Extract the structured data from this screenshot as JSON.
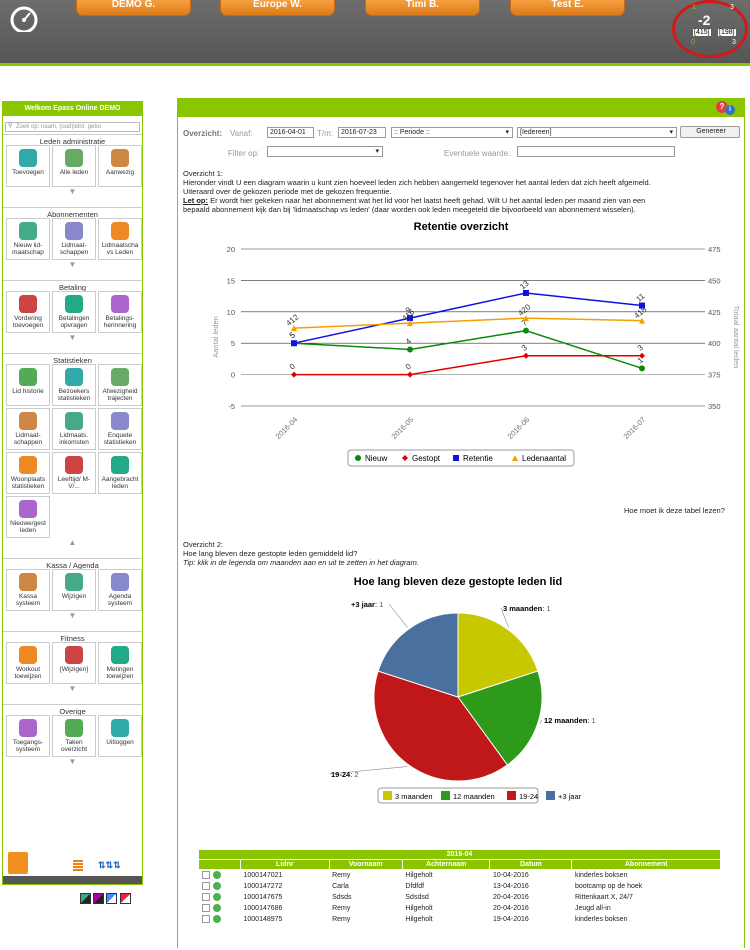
{
  "tabs": [
    "DEMO G.",
    "Europe W.",
    "Timi B.",
    "Test E."
  ],
  "score": {
    "value": "-2",
    "top_left": "1",
    "top_right": "3",
    "left_box": "[415]",
    "right_box": "[198]",
    "bottom_left": "0",
    "bottom_right": "3"
  },
  "sidebar": {
    "header": "Welkom Epass Online DEMO",
    "search_placeholder": "Zoek op: naam, (oud)lidnr, gebo",
    "sections": [
      {
        "title": "Leden administratie",
        "items": [
          "Toevoegen",
          "Alle leden",
          "Aanwezig"
        ]
      },
      {
        "title": "Abonnementen",
        "items": [
          "Nieuw lid-maatschap",
          "Lidmaat-schappen",
          "Lidmaatscha vs Leden"
        ]
      },
      {
        "title": "Betaling",
        "items": [
          "Vordering toevoegen",
          "Betalingen opvragen",
          "Betalings-herinnering"
        ]
      },
      {
        "title": "Statistieken",
        "items": [
          "Lid historie",
          "Bezoekers statistieken",
          "Afwezigheid trajecten",
          "Lidmaat-schappen",
          "Lidmaats. inkomsten",
          "Enquete statistieken",
          "Woonplaats statistieken",
          "Leeftijd/ M-V/...",
          "Aangebracht leden",
          "Nieuwe/gest leden"
        ]
      },
      {
        "title": "Kassa / Agenda",
        "items": [
          "Kassa systeem",
          "Wijzigen",
          "Agenda systeem"
        ]
      },
      {
        "title": "Fitness",
        "items": [
          "Workout toewijzen",
          "[Wijzigen]",
          "Metingen toewijzen"
        ]
      },
      {
        "title": "Overige",
        "items": [
          "Toegangs-systeem",
          "Taken overzicht",
          "Uitloggen"
        ]
      }
    ]
  },
  "filters": {
    "overzicht_label": "Overzicht:",
    "vanaf_label": "Vanaf:",
    "vanaf_value": "2016-04-01",
    "tm_label": "T/m:",
    "tm_value": "2016-07-23",
    "periode_value": ":: Periode ::",
    "iedereen_value": "[Iedereen]",
    "generate_label": "Genereer",
    "filter_label": "Filter op:",
    "eventuele_label": "Eventuele waarde:"
  },
  "overzicht1": {
    "heading": "Overzicht 1:",
    "line1": "Hieronder vindt U een diagram waarin u kunt zien hoeveel leden zich hebben aangemeld tegenover het aantal leden dat zich heeft afgemeld.",
    "line2": "Uiteraard over de gekozen periode met de gekozen frequentie.",
    "letop": "Let op:",
    "line3": " Er wordt hier gekeken naar het abonnement wat het lid voor het laatst heeft gehad. Wilt U het aantal leden per maand zien van een",
    "line4": "bepaald abonnement kijk dan bij 'lidmaatschap vs leden' (daar worden ook leden meegeteld die bijvoorbeeld van abonnement wisselen).",
    "help_link": "Hoe moet ik deze tabel lezen?"
  },
  "overzicht2": {
    "heading": "Overzicht 2:",
    "line1": "Hoe lang bleven deze gestopte leden gemiddeld lid?",
    "tip": "Tip: klik in de legenda om maanden aan en uit te zetten in het diagram."
  },
  "chart_data": [
    {
      "type": "line",
      "title": "Retentie overzicht",
      "categories": [
        "2016-04",
        "2016-05",
        "2016-06",
        "2016-07"
      ],
      "ylabel": "Aantal leden",
      "y2label": "Totaal aantal leden",
      "ylim": [
        -5,
        20
      ],
      "y2lim": [
        350,
        475
      ],
      "yticks": [
        "-5",
        "0",
        "5",
        "10",
        "15",
        "20"
      ],
      "y2ticks": [
        "350",
        "375",
        "400",
        "425",
        "450",
        "475"
      ],
      "grid": true,
      "legend": "bottom",
      "series": [
        {
          "name": "Nieuw",
          "values": [
            5,
            4,
            7,
            1
          ],
          "color": "#0a8a0a",
          "labels": [
            "5",
            "4",
            "7",
            "1"
          ]
        },
        {
          "name": "Gestopt",
          "values": [
            0,
            0,
            3,
            3
          ],
          "color": "#e00000",
          "labels": [
            "0",
            "0",
            "3",
            "3"
          ]
        },
        {
          "name": "Retentie",
          "values": [
            5,
            9,
            13,
            11
          ],
          "color": "#1010e0",
          "labels": [
            "5",
            "9",
            "13",
            "11"
          ]
        },
        {
          "name": "Ledenaantal",
          "axis": "right",
          "values": [
            412,
            416,
            420,
            418
          ],
          "color": "#f5a000",
          "labels": [
            "412",
            "416",
            "420",
            "418"
          ]
        }
      ]
    },
    {
      "type": "pie",
      "title": "Hoe lang bleven deze gestopte leden lid",
      "legend": "bottom",
      "slices": [
        {
          "label": "3 maanden",
          "value": 1,
          "color": "#c8c800"
        },
        {
          "label": "12 maanden",
          "value": 1,
          "color": "#2e9a1a"
        },
        {
          "label": "19-24",
          "value": 2,
          "color": "#c01818"
        },
        {
          "label": "+3 jaar",
          "value": 1,
          "color": "#4a70a0"
        }
      ]
    }
  ],
  "table": {
    "group": "2016-04",
    "headers": [
      "Lidnr",
      "Voornaam",
      "Achternaam",
      "Datum",
      "Abonnement"
    ],
    "rows": [
      [
        "1000147021",
        "Remy",
        "Hilgeholt",
        "10-04-2016",
        "kinderles boksen"
      ],
      [
        "1000147272",
        "Carla",
        "Dfdfdf",
        "13-04-2016",
        "bootcamp op de hoek"
      ],
      [
        "1000147675",
        "Sdsds",
        "Sdsdsd",
        "20-04-2016",
        "Rittenkaart X, 24/7"
      ],
      [
        "1000147686",
        "Remy",
        "Hilgeholt",
        "20-04-2016",
        "Jeugd all-in"
      ],
      [
        "1000148975",
        "Remy",
        "Hilgeholt",
        "19-04-2016",
        "kinderles boksen"
      ]
    ]
  }
}
